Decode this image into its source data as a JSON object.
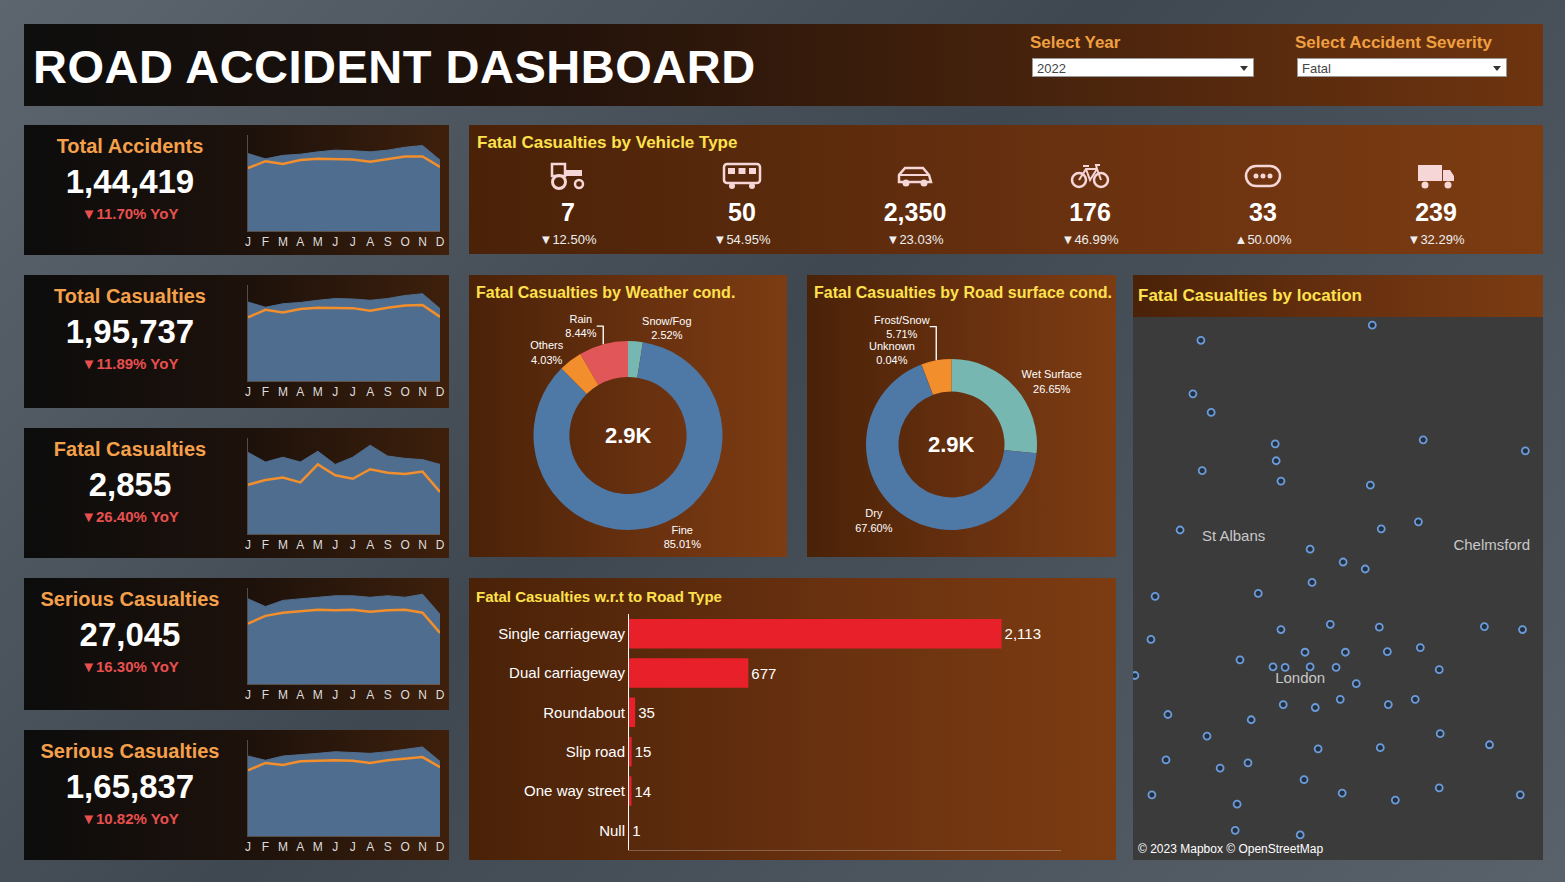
{
  "header": {
    "title": "ROAD ACCIDENT DASHBOARD",
    "filters": [
      {
        "label": "Select Year",
        "value": "2022"
      },
      {
        "label": "Select Accident Severity",
        "value": "Fatal"
      }
    ]
  },
  "kpis": [
    {
      "title": "Total Accidents",
      "value": "1,44,419",
      "change": "▼11.70% YoY",
      "chart_data": {
        "type": "area",
        "categories": [
          "J",
          "F",
          "M",
          "A",
          "M",
          "J",
          "J",
          "A",
          "S",
          "O",
          "N",
          "D"
        ],
        "series": [
          {
            "type": "area",
            "color": "#4f6d8f",
            "values": [
              13300,
              12400,
              13000,
              13200,
              13600,
              13900,
              13800,
              13600,
              13900,
              14400,
              14700,
              12200
            ]
          },
          {
            "type": "line",
            "color": "#f28e2b",
            "values": [
              10800,
              12000,
              11500,
              12200,
              12400,
              12400,
              12300,
              11900,
              12400,
              12800,
              12800,
              11000
            ]
          }
        ],
        "ylim": [
          0,
          16500
        ],
        "yticks": [],
        "tick_labels": "x",
        "grid": false
      }
    },
    {
      "title": "Total Casualties",
      "value": "1,95,737",
      "change": "▼11.89% YoY",
      "chart_data": {
        "type": "area",
        "categories": [
          "J",
          "F",
          "M",
          "A",
          "M",
          "J",
          "J",
          "A",
          "S",
          "O",
          "N",
          "D"
        ],
        "series": [
          {
            "type": "area",
            "color": "#4f6d8f",
            "values": [
              18100,
              16900,
              17700,
              18000,
              18500,
              18900,
              18800,
              18500,
              18900,
              19600,
              20000,
              16600
            ]
          },
          {
            "type": "line",
            "color": "#f28e2b",
            "values": [
              14600,
              16300,
              15700,
              16500,
              16800,
              16800,
              16700,
              16100,
              16800,
              17300,
              17400,
              14700
            ]
          }
        ],
        "ylim": [
          0,
          22000
        ],
        "yticks": [],
        "tick_labels": "x",
        "grid": false
      }
    },
    {
      "title": "Fatal Casualties",
      "value": "2,855",
      "change": "▼26.40% YoY",
      "chart_data": {
        "type": "area",
        "categories": [
          "J",
          "F",
          "M",
          "A",
          "M",
          "J",
          "J",
          "A",
          "S",
          "O",
          "N",
          "D"
        ],
        "series": [
          {
            "type": "area",
            "color": "#4f6d8f",
            "values": [
              340,
              300,
              320,
              300,
              345,
              290,
              320,
              370,
              325,
              315,
              310,
              290
            ]
          },
          {
            "type": "line",
            "color": "#f28e2b",
            "values": [
              205,
              225,
              235,
              215,
              290,
              245,
              230,
              270,
              255,
              250,
              260,
              175
            ]
          }
        ],
        "ylim": [
          0,
          400
        ],
        "yticks": [],
        "tick_labels": "x",
        "grid": false
      }
    },
    {
      "title": "Serious Casualties",
      "value": "27,045",
      "change": "▼16.30% YoY",
      "chart_data": {
        "type": "area",
        "categories": [
          "J",
          "F",
          "M",
          "A",
          "M",
          "J",
          "J",
          "A",
          "S",
          "O",
          "N",
          "D"
        ],
        "series": [
          {
            "type": "area",
            "color": "#4f6d8f",
            "values": [
              2750,
              2500,
              2700,
              2750,
              2800,
              2850,
              2850,
              2800,
              2850,
              2800,
              2900,
              2250
            ]
          },
          {
            "type": "line",
            "color": "#f28e2b",
            "values": [
              1950,
              2200,
              2300,
              2350,
              2400,
              2380,
              2400,
              2330,
              2380,
              2400,
              2300,
              1650
            ]
          }
        ],
        "ylim": [
          0,
          3100
        ],
        "yticks": [],
        "tick_labels": "x",
        "grid": false
      }
    },
    {
      "title": "Serious Casualties",
      "value": "1,65,837",
      "change": "▼10.82% YoY",
      "chart_data": {
        "type": "area",
        "categories": [
          "J",
          "F",
          "M",
          "A",
          "M",
          "J",
          "J",
          "A",
          "S",
          "O",
          "N",
          "D"
        ],
        "series": [
          {
            "type": "area",
            "color": "#4f6d8f",
            "values": [
              15000,
              14200,
              15000,
              15200,
              15500,
              15800,
              15700,
              15500,
              15800,
              16300,
              16700,
              14000
            ]
          },
          {
            "type": "line",
            "color": "#f28e2b",
            "values": [
              12300,
              13700,
              13300,
              14000,
              14100,
              14200,
              14100,
              13700,
              14200,
              14500,
              14800,
              12900
            ]
          }
        ],
        "ylim": [
          0,
          18000
        ],
        "yticks": [],
        "tick_labels": "x",
        "grid": false
      }
    }
  ],
  "vehicle_types": {
    "title": "Fatal Casualties by Vehicle Type",
    "values": [
      "7",
      "50",
      "2,350",
      "176",
      "33",
      "239"
    ],
    "changes": [
      "▼12.50%",
      "▼54.95%",
      "▼23.03%",
      "▼46.99%",
      "▲50.00%",
      "▼32.29%"
    ]
  },
  "chart_data": [
    {
      "type": "pie",
      "title": "Fatal Casualties by Weather cond.",
      "categories": [
        "Snow/Fog",
        "Rain",
        "Others",
        "Fine"
      ],
      "values": [
        2.52,
        8.44,
        4.03,
        85.01
      ],
      "value_labels": [
        "2.52%",
        "8.44%",
        "4.03%",
        "85.01%"
      ],
      "colors": [
        "#76b7b2",
        "#e15759",
        "#f28e2b",
        "#4e79a7"
      ],
      "center_label": "2.9K",
      "data_labels": true
    },
    {
      "type": "pie",
      "title": "Fatal Casualties by Road surface cond.",
      "categories": [
        "Wet Surface",
        "Frost/Snow",
        "Unknown",
        "Dry"
      ],
      "values": [
        26.65,
        5.71,
        0.04,
        67.6
      ],
      "value_labels": [
        "26.65%",
        "5.71%",
        "0.04%",
        "67.60%"
      ],
      "colors": [
        "#76b7b2",
        "#f28e2b",
        "#e15759",
        "#4e79a7"
      ],
      "center_label": "2.9K",
      "data_labels": true
    },
    {
      "type": "bar",
      "orientation": "horizontal",
      "title": "Fatal Casualties w.r.t to Road Type",
      "categories": [
        "Single carriageway",
        "Dual carriageway",
        "Roundabout",
        "Slip road",
        "One way street",
        "Null"
      ],
      "values": [
        2113,
        677,
        35,
        15,
        14,
        1
      ],
      "value_labels": [
        "2,113",
        "677",
        "35",
        "15",
        "14",
        "1"
      ],
      "color": "#e8202a",
      "data_labels": true,
      "xlim": [
        0,
        2450
      ],
      "xticks": [],
      "tick_labels": "y",
      "grid": false
    },
    {
      "type": "scatter",
      "title": "Fatal Casualties by location",
      "marker": "circle",
      "color": "#6b9bd8",
      "x": [
        -0.438,
        0.097,
        -0.463,
        -0.406,
        0.256,
        -0.206,
        0.575,
        -0.203,
        -0.434,
        -0.188,
        0.091,
        -0.503,
        0.075,
        -0.091,
        -0.259,
        -0.581,
        -0.594,
        -0.188,
        -0.034,
        0.119,
        0.447,
        0.566,
        -0.113,
        -0.316,
        -0.213,
        -0.175,
        -0.097,
        -0.016,
        0.013,
        0.144,
        0.306,
        0.047,
        -0.541,
        -0.281,
        -0.181,
        -0.081,
        -0.003,
        0.147,
        0.231,
        -0.419,
        -0.378,
        -0.291,
        -0.072,
        0.122,
        0.309,
        0.463,
        -0.547,
        -0.644,
        -0.591,
        -0.325,
        -0.116,
        0.003,
        0.169,
        0.306,
        0.559,
        -0.331,
        -0.128,
        0.125,
        0.241,
        0.006,
        0.247,
        -0.097
      ],
      "y": [
        52.09,
        52.116,
        51.998,
        51.966,
        51.919,
        51.912,
        51.9,
        51.883,
        51.866,
        51.848,
        51.841,
        51.764,
        51.697,
        51.674,
        51.655,
        51.65,
        51.576,
        51.593,
        51.602,
        51.597,
        51.598,
        51.593,
        51.554,
        51.541,
        51.529,
        51.528,
        51.529,
        51.528,
        51.554,
        51.555,
        51.524,
        51.5,
        51.447,
        51.438,
        51.464,
        51.459,
        51.473,
        51.464,
        51.473,
        51.41,
        51.355,
        51.364,
        51.388,
        51.39,
        51.414,
        51.395,
        51.369,
        51.514,
        51.309,
        51.293,
        51.335,
        51.312,
        51.3,
        51.321,
        51.309,
        51.248,
        51.24,
        51.766,
        51.778,
        51.709,
        51.562,
        51.731
      ],
      "xlim": [
        -0.65,
        0.63
      ],
      "ylim": [
        51.197,
        52.13
      ],
      "xticks": [],
      "yticks": [],
      "tick_labels": false,
      "grid": false,
      "places": [
        {
          "name": "St Albans",
          "x": -0.336,
          "y": 51.752
        },
        {
          "name": "London",
          "x": -0.128,
          "y": 51.507
        },
        {
          "name": "Chelmsford",
          "x": 0.47,
          "y": 51.736
        }
      ],
      "attribution": "© 2023 Mapbox © OpenStreetMap"
    }
  ]
}
